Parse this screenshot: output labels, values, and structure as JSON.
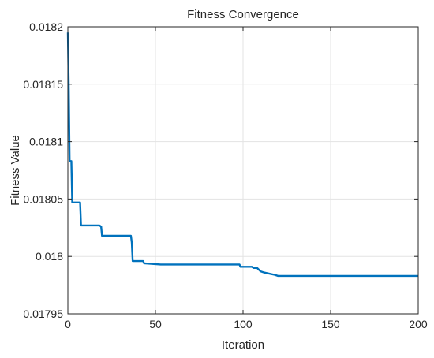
{
  "chart_data": {
    "type": "line",
    "title": "Fitness Convergence",
    "xlabel": "Iteration",
    "ylabel": "Fitness Value",
    "xlim": [
      0,
      200
    ],
    "ylim": [
      0.01795,
      0.0182
    ],
    "grid": true,
    "x_ticks": [
      0,
      50,
      100,
      150,
      200
    ],
    "x_tick_labels": [
      "0",
      "50",
      "100",
      "150",
      "200"
    ],
    "y_ticks": [
      0.01795,
      0.018,
      0.01805,
      0.0181,
      0.01815,
      0.0182
    ],
    "y_tick_labels": [
      "0.01795",
      "0.018",
      "0.01805",
      "0.0181",
      "0.01815",
      "0.0182"
    ],
    "line_color": "#0072bd",
    "series": [
      {
        "x": [
          0,
          0.5,
          1,
          2,
          2.5,
          3,
          7,
          7.5,
          18,
          19,
          19.5,
          36,
          36.5,
          37,
          43,
          43.5,
          53,
          98,
          98.5,
          105,
          106,
          108,
          110,
          112,
          115,
          118,
          120,
          123,
          160,
          161,
          200
        ],
        "y": [
          0.018195,
          0.018148,
          0.018083,
          0.018083,
          0.018047,
          0.018047,
          0.018047,
          0.018027,
          0.018027,
          0.018026,
          0.018018,
          0.018018,
          0.018012,
          0.017996,
          0.017996,
          0.017994,
          0.017993,
          0.017993,
          0.017991,
          0.017991,
          0.01799,
          0.01799,
          0.017987,
          0.017986,
          0.017985,
          0.017984,
          0.017983,
          0.017983,
          0.017983,
          0.017983,
          0.017983
        ]
      }
    ]
  }
}
